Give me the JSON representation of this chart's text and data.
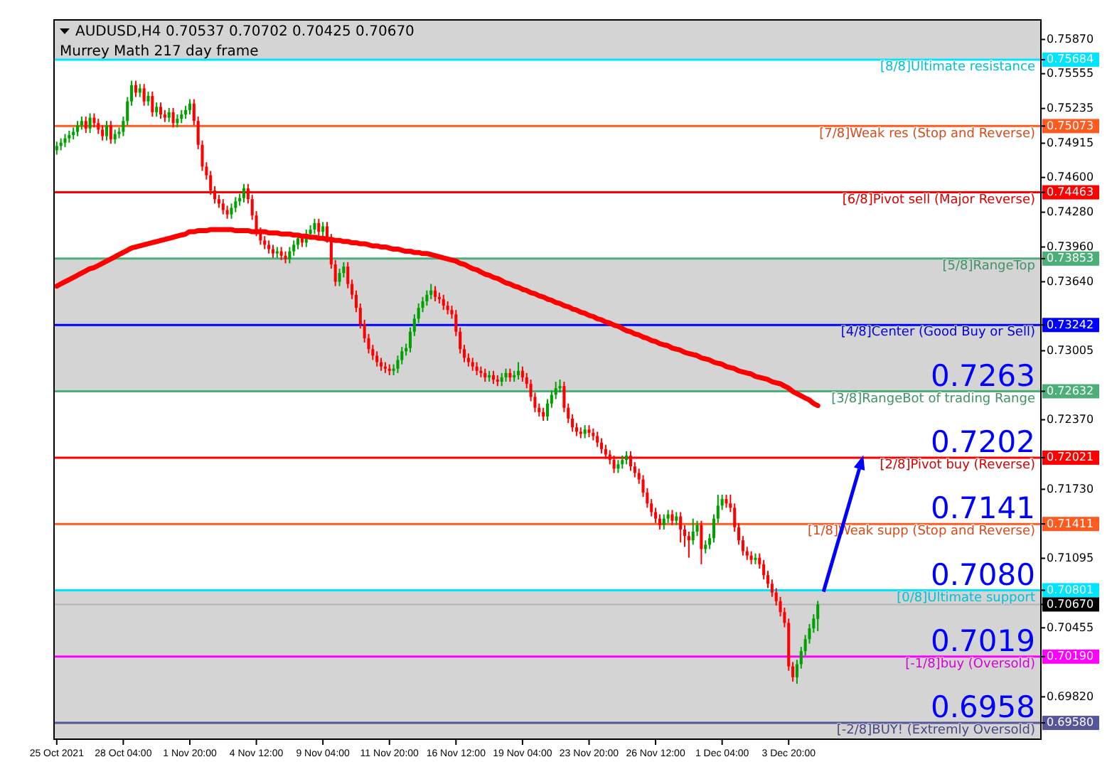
{
  "chart_data": {
    "type": "candlestick",
    "title": "AUDUSD,H4  0.70537 0.70702 0.70425 0.70670",
    "subtitle": "Murrey Math 217 day frame",
    "categories": [
      "25 Oct 2021",
      null,
      null,
      null,
      null,
      null,
      null,
      null,
      null,
      null,
      null,
      null,
      null,
      null,
      null,
      null,
      "28 Oct 04:00",
      null,
      null,
      null,
      null,
      null,
      null,
      null,
      null,
      null,
      null,
      null,
      null,
      null,
      null,
      null,
      "1 Nov 20:00",
      null,
      null,
      null,
      null,
      null,
      null,
      null,
      null,
      null,
      null,
      null,
      null,
      null,
      null,
      null,
      "4 Nov 12:00",
      null,
      null,
      null,
      null,
      null,
      null,
      null,
      null,
      null,
      null,
      null,
      null,
      null,
      null,
      null,
      "9 Nov 04:00",
      null,
      null,
      null,
      null,
      null,
      null,
      null,
      null,
      null,
      null,
      null,
      null,
      null,
      null,
      null,
      "11 Nov 20:00",
      null,
      null,
      null,
      null,
      null,
      null,
      null,
      null,
      null,
      null,
      null,
      null,
      null,
      null,
      null,
      "16 Nov 12:00",
      null,
      null,
      null,
      null,
      null,
      null,
      null,
      null,
      null,
      null,
      null,
      null,
      null,
      null,
      null,
      "19 Nov 04:00",
      null,
      null,
      null,
      null,
      null,
      null,
      null,
      null,
      null,
      null,
      null,
      null,
      null,
      null,
      null,
      "23 Nov 20:00",
      null,
      null,
      null,
      null,
      null,
      null,
      null,
      null,
      null,
      null,
      null,
      null,
      null,
      null,
      null,
      "26 Nov 12:00",
      null,
      null,
      null,
      null,
      null,
      null,
      null,
      null,
      null,
      null,
      null,
      null,
      null,
      null,
      null,
      "1 Dec 04:00",
      null,
      null,
      null,
      null,
      null,
      null,
      null,
      null,
      null,
      null,
      null,
      null,
      null,
      null,
      null,
      "3 Dec 20:00",
      null,
      null,
      null,
      null,
      null,
      null,
      null,
      null,
      null,
      null,
      null,
      null,
      null,
      null,
      null,
      null,
      null,
      null,
      null,
      null,
      null,
      null,
      null,
      null,
      null,
      null,
      null,
      null,
      null,
      null,
      null,
      null,
      null,
      null,
      null,
      null,
      null,
      null,
      null,
      null,
      null,
      null,
      null,
      null,
      null,
      null,
      null,
      null,
      null,
      null,
      null,
      null,
      null,
      null,
      null,
      null,
      null,
      null,
      null,
      null
    ],
    "ohlc": [
      [
        0.7485,
        0.7493,
        0.7481,
        0.7489
      ],
      [
        0.7489,
        0.7496,
        0.7485,
        0.7492
      ],
      [
        0.7492,
        0.75,
        0.7488,
        0.7496
      ],
      [
        0.7496,
        0.7503,
        0.7492,
        0.7499
      ],
      [
        0.7499,
        0.7506,
        0.7495,
        0.7502
      ],
      [
        0.7502,
        0.7512,
        0.7498,
        0.7508
      ],
      [
        0.7508,
        0.7516,
        0.7504,
        0.7512
      ],
      [
        0.7512,
        0.7516,
        0.7501,
        0.7505
      ],
      [
        0.7505,
        0.7519,
        0.7501,
        0.7515
      ],
      [
        0.7515,
        0.7519,
        0.7506,
        0.751
      ],
      [
        0.751,
        0.7514,
        0.75,
        0.7504
      ],
      [
        0.7504,
        0.7508,
        0.7494,
        0.7498
      ],
      [
        0.7498,
        0.7512,
        0.7494,
        0.7508
      ],
      [
        0.7508,
        0.7512,
        0.7491,
        0.7495
      ],
      [
        0.7495,
        0.7504,
        0.7491,
        0.75
      ],
      [
        0.75,
        0.7506,
        0.7496,
        0.7502
      ],
      [
        0.7502,
        0.7516,
        0.7498,
        0.7512
      ],
      [
        0.7512,
        0.7534,
        0.7508,
        0.753
      ],
      [
        0.753,
        0.7549,
        0.7526,
        0.7545
      ],
      [
        0.7545,
        0.7549,
        0.7534,
        0.7538
      ],
      [
        0.7538,
        0.7546,
        0.7534,
        0.7542
      ],
      [
        0.7542,
        0.7546,
        0.7526,
        0.753
      ],
      [
        0.753,
        0.7539,
        0.7526,
        0.7535
      ],
      [
        0.7535,
        0.7539,
        0.7516,
        0.752
      ],
      [
        0.752,
        0.7529,
        0.7516,
        0.7525
      ],
      [
        0.7525,
        0.7529,
        0.7514,
        0.7518
      ],
      [
        0.7518,
        0.7522,
        0.7511,
        0.7515
      ],
      [
        0.7515,
        0.7524,
        0.7511,
        0.752
      ],
      [
        0.752,
        0.7524,
        0.7506,
        0.751
      ],
      [
        0.751,
        0.7518,
        0.7506,
        0.7514
      ],
      [
        0.7514,
        0.7522,
        0.751,
        0.7518
      ],
      [
        0.7518,
        0.7526,
        0.7514,
        0.7522
      ],
      [
        0.7522,
        0.7532,
        0.7518,
        0.7528
      ],
      [
        0.7528,
        0.7532,
        0.7508,
        0.7512
      ],
      [
        0.7512,
        0.7516,
        0.7486,
        0.749
      ],
      [
        0.749,
        0.7494,
        0.7466,
        0.747
      ],
      [
        0.747,
        0.7474,
        0.7458,
        0.7462
      ],
      [
        0.7462,
        0.7466,
        0.7444,
        0.7448
      ],
      [
        0.7448,
        0.7452,
        0.7436,
        0.744
      ],
      [
        0.744,
        0.7444,
        0.7432,
        0.7436
      ],
      [
        0.7436,
        0.744,
        0.7426,
        0.743
      ],
      [
        0.743,
        0.7434,
        0.7422,
        0.7426
      ],
      [
        0.7426,
        0.7436,
        0.7422,
        0.7432
      ],
      [
        0.7432,
        0.7442,
        0.7428,
        0.7438
      ],
      [
        0.7438,
        0.7445,
        0.7434,
        0.7441
      ],
      [
        0.7441,
        0.7454,
        0.7437,
        0.745
      ],
      [
        0.745,
        0.7454,
        0.7436,
        0.744
      ],
      [
        0.744,
        0.7444,
        0.7421,
        0.7425
      ],
      [
        0.7425,
        0.7429,
        0.7406,
        0.741
      ],
      [
        0.741,
        0.7414,
        0.7398,
        0.7402
      ],
      [
        0.7402,
        0.7406,
        0.7394,
        0.7398
      ],
      [
        0.7398,
        0.7402,
        0.739,
        0.7394
      ],
      [
        0.7394,
        0.7398,
        0.7386,
        0.739
      ],
      [
        0.739,
        0.7396,
        0.7386,
        0.7392
      ],
      [
        0.7392,
        0.7396,
        0.7384,
        0.7388
      ],
      [
        0.7388,
        0.7392,
        0.7381,
        0.7385
      ],
      [
        0.7385,
        0.7396,
        0.7381,
        0.7392
      ],
      [
        0.7392,
        0.7402,
        0.7388,
        0.7398
      ],
      [
        0.7398,
        0.7408,
        0.7394,
        0.7404
      ],
      [
        0.7404,
        0.7408,
        0.7396,
        0.74
      ],
      [
        0.74,
        0.7412,
        0.7396,
        0.7408
      ],
      [
        0.7408,
        0.7416,
        0.7404,
        0.7412
      ],
      [
        0.7412,
        0.7422,
        0.7408,
        0.7418
      ],
      [
        0.7418,
        0.7422,
        0.7406,
        0.741
      ],
      [
        0.741,
        0.7419,
        0.7406,
        0.7415
      ],
      [
        0.7415,
        0.7419,
        0.74,
        0.7404
      ],
      [
        0.7404,
        0.7408,
        0.7376,
        0.738
      ],
      [
        0.738,
        0.7384,
        0.736,
        0.7364
      ],
      [
        0.7364,
        0.7376,
        0.736,
        0.7372
      ],
      [
        0.7372,
        0.7382,
        0.7368,
        0.7378
      ],
      [
        0.7378,
        0.7382,
        0.7358,
        0.7362
      ],
      [
        0.7362,
        0.7366,
        0.7348,
        0.7352
      ],
      [
        0.7352,
        0.7356,
        0.7336,
        0.734
      ],
      [
        0.734,
        0.7344,
        0.7321,
        0.7325
      ],
      [
        0.7325,
        0.7329,
        0.7308,
        0.7312
      ],
      [
        0.7312,
        0.7316,
        0.7298,
        0.7302
      ],
      [
        0.7302,
        0.7306,
        0.7292,
        0.7296
      ],
      [
        0.7296,
        0.73,
        0.7286,
        0.729
      ],
      [
        0.729,
        0.7294,
        0.7282,
        0.7286
      ],
      [
        0.7286,
        0.729,
        0.728,
        0.7284
      ],
      [
        0.7284,
        0.7288,
        0.7278,
        0.7282
      ],
      [
        0.7282,
        0.7288,
        0.7278,
        0.7284
      ],
      [
        0.7284,
        0.7296,
        0.728,
        0.7292
      ],
      [
        0.7292,
        0.7304,
        0.7288,
        0.73
      ],
      [
        0.73,
        0.7307,
        0.7296,
        0.7303
      ],
      [
        0.7303,
        0.7322,
        0.7299,
        0.7318
      ],
      [
        0.7318,
        0.7334,
        0.7314,
        0.733
      ],
      [
        0.733,
        0.7344,
        0.7326,
        0.734
      ],
      [
        0.734,
        0.735,
        0.7336,
        0.7346
      ],
      [
        0.7346,
        0.7356,
        0.7342,
        0.7352
      ],
      [
        0.7352,
        0.7362,
        0.7348,
        0.7356
      ],
      [
        0.7356,
        0.736,
        0.7346,
        0.735
      ],
      [
        0.735,
        0.7354,
        0.7344,
        0.7348
      ],
      [
        0.7348,
        0.7352,
        0.7338,
        0.7342
      ],
      [
        0.7342,
        0.7346,
        0.7334,
        0.7338
      ],
      [
        0.7338,
        0.7342,
        0.733,
        0.7334
      ],
      [
        0.7334,
        0.7338,
        0.7314,
        0.7318
      ],
      [
        0.7318,
        0.7322,
        0.7298,
        0.7302
      ],
      [
        0.7302,
        0.7306,
        0.729,
        0.7294
      ],
      [
        0.7294,
        0.7298,
        0.7286,
        0.729
      ],
      [
        0.729,
        0.7294,
        0.7282,
        0.7286
      ],
      [
        0.7286,
        0.729,
        0.7278,
        0.7282
      ],
      [
        0.7282,
        0.7286,
        0.7276,
        0.728
      ],
      [
        0.728,
        0.7284,
        0.7272,
        0.7276
      ],
      [
        0.7276,
        0.7282,
        0.7272,
        0.7278
      ],
      [
        0.7278,
        0.7282,
        0.727,
        0.7274
      ],
      [
        0.7274,
        0.7278,
        0.7268,
        0.7272
      ],
      [
        0.7272,
        0.728,
        0.7268,
        0.7276
      ],
      [
        0.7276,
        0.7284,
        0.7272,
        0.728
      ],
      [
        0.728,
        0.7284,
        0.7272,
        0.7276
      ],
      [
        0.7276,
        0.7282,
        0.7272,
        0.7278
      ],
      [
        0.7278,
        0.729,
        0.7274,
        0.7282
      ],
      [
        0.7282,
        0.7286,
        0.7272,
        0.7276
      ],
      [
        0.7276,
        0.728,
        0.7266,
        0.727
      ],
      [
        0.727,
        0.7274,
        0.7254,
        0.7258
      ],
      [
        0.7258,
        0.7262,
        0.7244,
        0.7248
      ],
      [
        0.7248,
        0.7252,
        0.724,
        0.7244
      ],
      [
        0.7244,
        0.7248,
        0.7236,
        0.724
      ],
      [
        0.724,
        0.7256,
        0.7236,
        0.7252
      ],
      [
        0.7252,
        0.7264,
        0.7248,
        0.726
      ],
      [
        0.726,
        0.7272,
        0.7256,
        0.7266
      ],
      [
        0.7266,
        0.7274,
        0.7262,
        0.7268
      ],
      [
        0.7268,
        0.7272,
        0.7244,
        0.7248
      ],
      [
        0.7248,
        0.7252,
        0.7234,
        0.7238
      ],
      [
        0.7238,
        0.7242,
        0.7226,
        0.723
      ],
      [
        0.723,
        0.7234,
        0.7222,
        0.7226
      ],
      [
        0.7226,
        0.723,
        0.722,
        0.7224
      ],
      [
        0.7224,
        0.7232,
        0.722,
        0.7228
      ],
      [
        0.7228,
        0.7232,
        0.7221,
        0.7225
      ],
      [
        0.7225,
        0.7229,
        0.7218,
        0.7222
      ],
      [
        0.7222,
        0.7226,
        0.7212,
        0.7216
      ],
      [
        0.7216,
        0.722,
        0.7206,
        0.721
      ],
      [
        0.721,
        0.7214,
        0.7201,
        0.7205
      ],
      [
        0.7205,
        0.7209,
        0.7196,
        0.72
      ],
      [
        0.72,
        0.7204,
        0.7188,
        0.7192
      ],
      [
        0.7192,
        0.72,
        0.7188,
        0.7196
      ],
      [
        0.7196,
        0.7204,
        0.7192,
        0.72
      ],
      [
        0.72,
        0.7208,
        0.7196,
        0.7204
      ],
      [
        0.7204,
        0.7208,
        0.719,
        0.7194
      ],
      [
        0.7194,
        0.7198,
        0.7184,
        0.7188
      ],
      [
        0.7188,
        0.7192,
        0.7178,
        0.7182
      ],
      [
        0.7182,
        0.7186,
        0.7166,
        0.717
      ],
      [
        0.717,
        0.7174,
        0.7156,
        0.716
      ],
      [
        0.716,
        0.7164,
        0.7148,
        0.7152
      ],
      [
        0.7152,
        0.7156,
        0.7142,
        0.7146
      ],
      [
        0.7146,
        0.715,
        0.7136,
        0.714
      ],
      [
        0.714,
        0.715,
        0.7136,
        0.7146
      ],
      [
        0.7146,
        0.7154,
        0.7142,
        0.715
      ],
      [
        0.715,
        0.7154,
        0.714,
        0.7144
      ],
      [
        0.7144,
        0.7152,
        0.714,
        0.7148
      ],
      [
        0.7148,
        0.7152,
        0.7124,
        0.7136
      ],
      [
        0.7136,
        0.714,
        0.712,
        0.713
      ],
      [
        0.713,
        0.7134,
        0.711,
        0.7126
      ],
      [
        0.7126,
        0.7146,
        0.7122,
        0.7134
      ],
      [
        0.7134,
        0.7144,
        0.713,
        0.714
      ],
      [
        0.714,
        0.7144,
        0.7104,
        0.7118
      ],
      [
        0.7118,
        0.7126,
        0.7114,
        0.7122
      ],
      [
        0.7122,
        0.7132,
        0.7118,
        0.7128
      ],
      [
        0.7128,
        0.715,
        0.7124,
        0.7146
      ],
      [
        0.7146,
        0.7168,
        0.7142,
        0.7158
      ],
      [
        0.7158,
        0.7168,
        0.7154,
        0.7164
      ],
      [
        0.7164,
        0.7168,
        0.7156,
        0.716
      ],
      [
        0.716,
        0.7168,
        0.7152,
        0.7156
      ],
      [
        0.7156,
        0.716,
        0.7134,
        0.7138
      ],
      [
        0.7138,
        0.7142,
        0.7122,
        0.7126
      ],
      [
        0.7126,
        0.713,
        0.7112,
        0.7116
      ],
      [
        0.7116,
        0.712,
        0.7108,
        0.7112
      ],
      [
        0.7112,
        0.7116,
        0.7104,
        0.7108
      ],
      [
        0.7108,
        0.7114,
        0.7104,
        0.711
      ],
      [
        0.711,
        0.7114,
        0.71,
        0.7104
      ],
      [
        0.7104,
        0.7108,
        0.709,
        0.7094
      ],
      [
        0.7094,
        0.7098,
        0.7082,
        0.7086
      ],
      [
        0.7086,
        0.709,
        0.7074,
        0.7078
      ],
      [
        0.7078,
        0.7082,
        0.7066,
        0.707
      ],
      [
        0.707,
        0.7074,
        0.7056,
        0.706
      ],
      [
        0.706,
        0.7064,
        0.7046,
        0.705
      ],
      [
        0.705,
        0.7054,
        0.7006,
        0.701
      ],
      [
        0.701,
        0.7014,
        0.6996,
        0.7
      ],
      [
        0.7,
        0.7016,
        0.6994,
        0.7012
      ],
      [
        0.7012,
        0.7028,
        0.7008,
        0.7024
      ],
      [
        0.7024,
        0.7039,
        0.702,
        0.7035
      ],
      [
        0.7035,
        0.7049,
        0.7031,
        0.7045
      ],
      [
        0.7045,
        0.7058,
        0.7041,
        0.7054
      ],
      [
        0.70537,
        0.70702,
        0.70425,
        0.7067
      ],
      null,
      null,
      null,
      null,
      null,
      null,
      null,
      null,
      null,
      null,
      null,
      null,
      null,
      null,
      null,
      null,
      null,
      null,
      null,
      null,
      null,
      null,
      null,
      null,
      null,
      null,
      null,
      null,
      null,
      null,
      null,
      null,
      null,
      null,
      null,
      null,
      null,
      null,
      null,
      null,
      null,
      null,
      null,
      null,
      null,
      null,
      null,
      null,
      null,
      null,
      null,
      null,
      null
    ],
    "series": [
      {
        "type": "line",
        "color": "#ff0000",
        "values": [
          0.736,
          0.7362,
          0.7364,
          0.7366,
          0.7368,
          0.737,
          0.7372,
          0.7374,
          0.7376,
          0.7377,
          0.7379,
          0.7381,
          0.7383,
          0.7385,
          0.7387,
          0.7389,
          0.7391,
          0.7393,
          0.7395,
          0.7396,
          0.7397,
          0.7398,
          0.7399,
          0.74,
          0.7401,
          0.7402,
          0.7403,
          0.7404,
          0.7405,
          0.7406,
          0.7407,
          0.7408,
          0.741,
          0.741,
          0.7411,
          0.7411,
          0.7411,
          0.7412,
          0.7412,
          0.7412,
          0.7412,
          0.7412,
          0.7412,
          0.7411,
          0.7411,
          0.7411,
          0.7411,
          0.741,
          0.741,
          0.741,
          0.741,
          0.7409,
          0.7409,
          0.7409,
          0.7408,
          0.7408,
          0.7408,
          0.7407,
          0.7407,
          0.7406,
          0.7406,
          0.7405,
          0.7405,
          0.7404,
          0.7404,
          0.7403,
          0.7403,
          0.7402,
          0.7402,
          0.7401,
          0.7401,
          0.74,
          0.74,
          0.7399,
          0.7399,
          0.7398,
          0.7397,
          0.7397,
          0.7396,
          0.7396,
          0.7395,
          0.7394,
          0.7394,
          0.7393,
          0.7392,
          0.7392,
          0.7391,
          0.7391,
          0.739,
          0.739,
          0.7389,
          0.7388,
          0.7387,
          0.7386,
          0.7385,
          0.7384,
          0.7383,
          0.7381,
          0.738,
          0.7378,
          0.7376,
          0.7375,
          0.7373,
          0.7371,
          0.737,
          0.7368,
          0.7367,
          0.7365,
          0.7363,
          0.7362,
          0.736,
          0.7359,
          0.7357,
          0.7356,
          0.7354,
          0.7353,
          0.7351,
          0.735,
          0.7348,
          0.7347,
          0.7345,
          0.7344,
          0.7342,
          0.7341,
          0.7339,
          0.7338,
          0.7336,
          0.7335,
          0.7333,
          0.7332,
          0.733,
          0.7329,
          0.7327,
          0.7326,
          0.7324,
          0.7323,
          0.7321,
          0.7319,
          0.7318,
          0.7316,
          0.7315,
          0.7313,
          0.7312,
          0.731,
          0.7309,
          0.7307,
          0.7306,
          0.7305,
          0.7303,
          0.7302,
          0.7301,
          0.7299,
          0.7298,
          0.7297,
          0.7296,
          0.7294,
          0.7293,
          0.7292,
          0.729,
          0.7289,
          0.7288,
          0.7286,
          0.7285,
          0.7284,
          0.7282,
          0.7281,
          0.728,
          0.7279,
          0.7277,
          0.7276,
          0.7275,
          0.7274,
          0.7272,
          0.7271,
          0.727,
          0.7268,
          0.7266,
          0.7263,
          0.7261,
          0.7259,
          0.7257,
          0.7255,
          0.7252,
          0.725,
          null,
          null,
          null,
          null,
          null,
          null,
          null,
          null,
          null,
          null,
          null,
          null,
          null,
          null,
          null,
          null,
          null,
          null,
          null,
          null,
          null,
          null,
          null,
          null,
          null,
          null,
          null,
          null,
          null,
          null,
          null,
          null,
          null,
          null,
          null,
          null,
          null,
          null,
          null,
          null,
          null,
          null,
          null,
          null,
          null,
          null,
          null,
          null,
          null,
          null,
          null,
          null,
          null
        ]
      }
    ],
    "ylim": [
      0.6943,
      0.7605
    ],
    "yticks": [
      {
        "value": 0.7587,
        "label": "0.75870"
      },
      {
        "value": 0.75684,
        "label": "0.75684"
      },
      {
        "value": 0.75555,
        "label": "0.75555"
      },
      {
        "value": 0.75235,
        "label": "0.75235"
      },
      {
        "value": 0.75073,
        "label": "0.75073"
      },
      {
        "value": 0.74915,
        "label": "0.74915"
      },
      {
        "value": 0.746,
        "label": "0.74600"
      },
      {
        "value": 0.74463,
        "label": "0.74463"
      },
      {
        "value": 0.7428,
        "label": "0.74280"
      },
      {
        "value": 0.7396,
        "label": "0.73960"
      },
      {
        "value": 0.73853,
        "label": "0.73853"
      },
      {
        "value": 0.7364,
        "label": "0.73640"
      },
      {
        "value": 0.73242,
        "label": "0.73242"
      },
      {
        "value": 0.73005,
        "label": "0.73005"
      },
      {
        "value": 0.72632,
        "label": "0.72632"
      },
      {
        "value": 0.7237,
        "label": "0.72370"
      },
      {
        "value": 0.72021,
        "label": "0.72021"
      },
      {
        "value": 0.7173,
        "label": "0.71730"
      },
      {
        "value": 0.71411,
        "label": "0.71411"
      },
      {
        "value": 0.71095,
        "label": "0.71095"
      },
      {
        "value": 0.70801,
        "label": "0.70801"
      },
      {
        "value": 0.7067,
        "label": "0.70670"
      },
      {
        "value": 0.70455,
        "label": "0.70455"
      },
      {
        "value": 0.7019,
        "label": "0.70190"
      },
      {
        "value": 0.6982,
        "label": "0.69820"
      },
      {
        "value": 0.6958,
        "label": "0.69580"
      }
    ],
    "bands": [
      {
        "axis": "y",
        "from": 0.75684,
        "to": 0.7605,
        "color": "#d4d4d4"
      },
      {
        "axis": "y",
        "from": 0.72632,
        "to": 0.73853,
        "color": "#d4d4d4"
      },
      {
        "axis": "y",
        "from": 0.6943,
        "to": 0.70801,
        "color": "#d4d4d4"
      }
    ],
    "ref_lines": [
      {
        "axis": "y",
        "value": 0.75684,
        "label": "[8/8]Ultimate resistance",
        "color": "#00e5ff"
      },
      {
        "axis": "y",
        "value": 0.75073,
        "label": "[7/8]Weak res (Stop and Reverse)",
        "color": "#ff5a1f"
      },
      {
        "axis": "y",
        "value": 0.74463,
        "label": "[6/8]Pivot sell (Major Reverse)",
        "color": "#ff0000"
      },
      {
        "axis": "y",
        "value": 0.73853,
        "label": "[5/8]RangeTop",
        "color": "#4caf7a"
      },
      {
        "axis": "y",
        "value": 0.73242,
        "label": "[4/8]Center (Good Buy or Sell)",
        "color": "#0000ff"
      },
      {
        "axis": "y",
        "value": 0.72632,
        "label": "[3/8]RangeBot of trading Range",
        "color": "#4caf7a"
      },
      {
        "axis": "y",
        "value": 0.72021,
        "label": "[2/8]Pivot buy (Reverse)",
        "color": "#ff0000"
      },
      {
        "axis": "y",
        "value": 0.71411,
        "label": "[1/8]Weak supp (Stop and Reverse)",
        "color": "#ff5a1f"
      },
      {
        "axis": "y",
        "value": 0.70801,
        "label": "[0/8]Ultimate support",
        "color": "#00e5ff"
      },
      {
        "axis": "y",
        "value": 0.7067,
        "label": null,
        "color": "#b4b4b4"
      },
      {
        "axis": "y",
        "value": 0.7019,
        "label": "[-1/8]buy (Oversold)",
        "color": "#ff00ff"
      },
      {
        "axis": "y",
        "value": 0.6958,
        "label": "[-2/8]BUY! (Extremly Oversold)",
        "color": "#55559a"
      }
    ],
    "annotations": [
      {
        "text": "0.7263",
        "y": 0.7263
      },
      {
        "text": "0.7202",
        "y": 0.7202
      },
      {
        "text": "0.7141",
        "y": 0.7141
      },
      {
        "text": "0.7080",
        "y": 0.708
      },
      {
        "text": "0.7019",
        "y": 0.7019
      },
      {
        "text": "0.6958",
        "y": 0.6958
      }
    ]
  }
}
